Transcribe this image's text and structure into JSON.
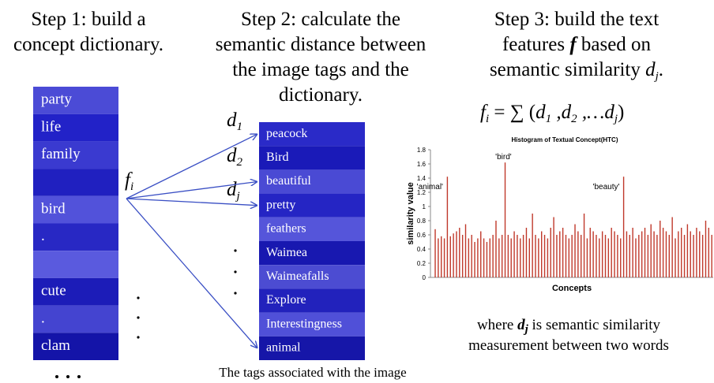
{
  "step1": {
    "title": [
      "Step 1:  build a",
      "concept dictionary."
    ],
    "rows": [
      "party",
      "life",
      "family",
      null,
      "bird",
      ".",
      null,
      "cute",
      ".",
      "clam"
    ]
  },
  "step2": {
    "title": [
      "Step 2: calculate the",
      "semantic distance between",
      "the image tags and the",
      "dictionary."
    ],
    "tags": [
      "peacock",
      "Bird",
      "beautiful",
      "pretty",
      "feathers",
      "Waimea",
      "Waimeafalls",
      "Explore",
      "Interestingness",
      "animal"
    ],
    "caption": "The tags associated with the image",
    "symbols": [
      {
        "base": "f",
        "sub": "i"
      },
      {
        "base": "d",
        "sub": "1"
      },
      {
        "base": "d",
        "sub": "2"
      },
      {
        "base": "d",
        "sub": "j"
      }
    ]
  },
  "step3": {
    "title": {
      "line1": "Step 3:  build the text",
      "line2": [
        "features ",
        "f",
        " based on"
      ],
      "line3": [
        "semantic similarity ",
        "d",
        "j",
        "."
      ]
    },
    "formula": [
      "f",
      "i",
      " = ∑ (",
      "d",
      "1",
      " ,",
      "d",
      "2",
      " ,…",
      "d",
      "j",
      ")"
    ],
    "note": {
      "line1": [
        "where ",
        "d",
        "j",
        " is semantic similarity"
      ],
      "line2": "measurement between two words"
    }
  },
  "chart_data": {
    "type": "bar",
    "title": "Histogram of Textual Concept(HTC)",
    "y_label": "similarity value",
    "x_label": "Concepts",
    "color": "#c0392b",
    "ylim": [
      0,
      1.8
    ],
    "yticks": [
      0,
      0.2,
      0.4,
      0.6,
      0.8,
      1,
      1.2,
      1.4,
      1.6,
      1.8
    ],
    "annotations": [
      "'animal'",
      "'bird'",
      "'beauty'"
    ],
    "values": [
      0.68,
      0.55,
      0.58,
      0.55,
      1.42,
      0.58,
      0.62,
      0.65,
      0.7,
      0.6,
      0.75,
      0.55,
      0.6,
      0.5,
      0.55,
      0.65,
      0.55,
      0.5,
      0.55,
      0.6,
      0.8,
      0.55,
      0.6,
      1.62,
      0.6,
      0.55,
      0.65,
      0.6,
      0.55,
      0.6,
      0.7,
      0.55,
      0.9,
      0.6,
      0.55,
      0.65,
      0.6,
      0.55,
      0.7,
      0.85,
      0.6,
      0.65,
      0.7,
      0.6,
      0.55,
      0.6,
      0.75,
      0.65,
      0.6,
      0.9,
      0.55,
      0.7,
      0.65,
      0.6,
      0.55,
      0.65,
      0.6,
      0.55,
      0.7,
      0.65,
      0.6,
      0.55,
      1.42,
      0.65,
      0.6,
      0.7,
      0.55,
      0.6,
      0.65,
      0.7,
      0.6,
      0.75,
      0.65,
      0.6,
      0.8,
      0.7,
      0.65,
      0.6,
      0.85,
      0.55,
      0.65,
      0.7,
      0.6,
      0.75,
      0.65,
      0.6,
      0.7,
      0.65,
      0.6,
      0.8,
      0.7,
      0.6
    ]
  }
}
